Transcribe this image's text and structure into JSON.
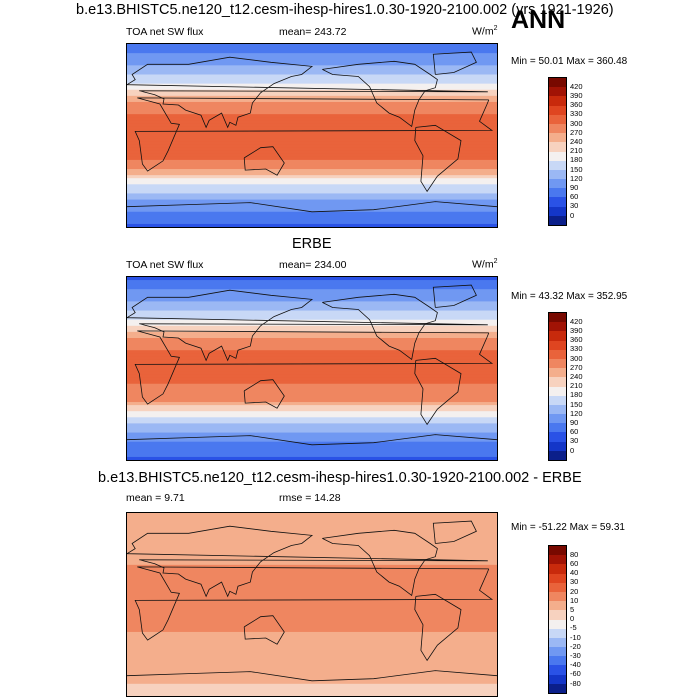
{
  "title": "b.e13.BHISTC5.ne120_t12.cesm-ihesp-hires1.0.30-1920-2100.002 (yrs 1921-1926)",
  "season": "ANN",
  "panels": [
    {
      "title": "",
      "left_label": "TOA net SW flux",
      "center_label": "mean= 243.72",
      "units": "W/m",
      "units_sup": "2",
      "minmax": "Min =  50.01 Max = 360.48"
    },
    {
      "title": "ERBE",
      "left_label": "TOA net SW flux",
      "center_label": "mean= 234.00",
      "units": "W/m",
      "units_sup": "2",
      "minmax": "Min =  43.32 Max = 352.95"
    },
    {
      "title": "b.e13.BHISTC5.ne120_t12.cesm-ihesp-hires1.0.30-1920-2100.002 - ERBE",
      "left_label": "mean =   9.71",
      "center_label": "rmse =  14.28",
      "units": "",
      "units_sup": "",
      "minmax": "Min = -51.22 Max =  59.31"
    }
  ],
  "chart_data": [
    {
      "type": "heatmap",
      "title": "",
      "variable": "TOA net SW flux",
      "units": "W/m2",
      "mean": 243.72,
      "min": 50.01,
      "max": 360.48,
      "colorbar_levels": [
        0,
        30,
        60,
        90,
        120,
        150,
        180,
        210,
        240,
        270,
        300,
        330,
        360,
        390,
        420
      ],
      "colors": [
        "#0b1f8a",
        "#1436c8",
        "#2a52e6",
        "#4a78ef",
        "#7098f2",
        "#9bb8f4",
        "#c8d8f6",
        "#f4f0ef",
        "#f7d2bf",
        "#f4ae8c",
        "#ef8660",
        "#e9633b",
        "#df4520",
        "#c82a0c",
        "#a11305",
        "#780900"
      ],
      "zonal_profile": [
        {
          "lat": 90,
          "value": 60
        },
        {
          "lat": 70,
          "value": 120
        },
        {
          "lat": 50,
          "value": 180
        },
        {
          "lat": 30,
          "value": 280
        },
        {
          "lat": 10,
          "value": 330
        },
        {
          "lat": -10,
          "value": 320
        },
        {
          "lat": -30,
          "value": 290
        },
        {
          "lat": -50,
          "value": 170
        },
        {
          "lat": -70,
          "value": 100
        },
        {
          "lat": -90,
          "value": 55
        }
      ]
    },
    {
      "type": "heatmap",
      "title": "ERBE",
      "variable": "TOA net SW flux",
      "units": "W/m2",
      "mean": 234.0,
      "min": 43.32,
      "max": 352.95,
      "colorbar_levels": [
        0,
        30,
        60,
        90,
        120,
        150,
        180,
        210,
        240,
        270,
        300,
        330,
        360,
        390,
        420
      ],
      "colors": [
        "#0b1f8a",
        "#1436c8",
        "#2a52e6",
        "#4a78ef",
        "#7098f2",
        "#9bb8f4",
        "#c8d8f6",
        "#f4f0ef",
        "#f7d2bf",
        "#f4ae8c",
        "#ef8660",
        "#e9633b",
        "#df4520",
        "#c82a0c",
        "#a11305",
        "#780900"
      ],
      "zonal_profile": [
        {
          "lat": 90,
          "value": 55
        },
        {
          "lat": 70,
          "value": 110
        },
        {
          "lat": 50,
          "value": 170
        },
        {
          "lat": 30,
          "value": 270
        },
        {
          "lat": 10,
          "value": 315
        },
        {
          "lat": -10,
          "value": 305
        },
        {
          "lat": -30,
          "value": 280
        },
        {
          "lat": -50,
          "value": 165
        },
        {
          "lat": -70,
          "value": 95
        },
        {
          "lat": -90,
          "value": 50
        }
      ]
    },
    {
      "type": "heatmap",
      "title": "b.e13.BHISTC5.ne120_t12.cesm-ihesp-hires1.0.30-1920-2100.002 - ERBE",
      "mean": 9.71,
      "rmse": 14.28,
      "min": -51.22,
      "max": 59.31,
      "colorbar_levels": [
        -80,
        -60,
        -40,
        -30,
        -20,
        -10,
        -5,
        0,
        5,
        10,
        20,
        30,
        40,
        60,
        80
      ],
      "colors": [
        "#0b1f8a",
        "#1436c8",
        "#2a52e6",
        "#4a78ef",
        "#7098f2",
        "#9bb8f4",
        "#c8d8f6",
        "#f4f0ef",
        "#f7d2bf",
        "#f4ae8c",
        "#ef8660",
        "#e9633b",
        "#df4520",
        "#c82a0c",
        "#a11305",
        "#780900"
      ],
      "zonal_profile": [
        {
          "lat": 90,
          "value": 5
        },
        {
          "lat": 70,
          "value": 10
        },
        {
          "lat": 50,
          "value": 8
        },
        {
          "lat": 30,
          "value": 12
        },
        {
          "lat": 10,
          "value": 15
        },
        {
          "lat": -10,
          "value": 18
        },
        {
          "lat": -30,
          "value": 8
        },
        {
          "lat": -50,
          "value": 10
        },
        {
          "lat": -70,
          "value": 6
        },
        {
          "lat": -90,
          "value": 3
        }
      ]
    }
  ]
}
